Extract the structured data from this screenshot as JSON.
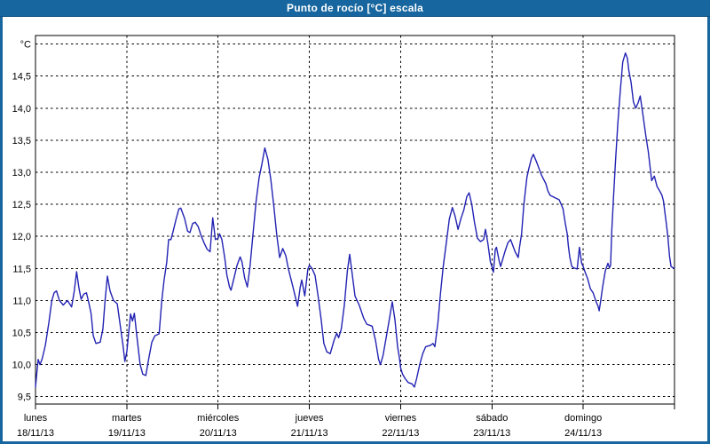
{
  "window": {
    "title": "Punto de rocío [°C] escala"
  },
  "colors": {
    "header_bg": "#17669f",
    "header_text": "#ffffff",
    "frame_border": "#17669f",
    "series_line": "#2222b3",
    "grid": "#000000",
    "plot_bg": "#ffffff"
  },
  "chart": {
    "y_axis": {
      "ticks": [
        {
          "label": "°C",
          "value": 15.0
        },
        {
          "label": "14,5",
          "value": 14.5
        },
        {
          "label": "14,0",
          "value": 14.0
        },
        {
          "label": "13,5",
          "value": 13.5
        },
        {
          "label": "13,0",
          "value": 13.0
        },
        {
          "label": "12,5",
          "value": 12.5
        },
        {
          "label": "12,0",
          "value": 12.0
        },
        {
          "label": "11,5",
          "value": 11.5
        },
        {
          "label": "11,0",
          "value": 11.0
        },
        {
          "label": "10,5",
          "value": 10.5
        },
        {
          "label": "10,0",
          "value": 10.0
        },
        {
          "label": "9,5",
          "value": 9.5
        }
      ]
    },
    "x_axis": {
      "days": [
        {
          "name": "lunes",
          "date": "18/11/13"
        },
        {
          "name": "martes",
          "date": "19/11/13"
        },
        {
          "name": "miércoles",
          "date": "20/11/13"
        },
        {
          "name": "jueves",
          "date": "21/11/13"
        },
        {
          "name": "viernes",
          "date": "22/11/13"
        },
        {
          "name": "sábado",
          "date": "23/11/13"
        },
        {
          "name": "domingo",
          "date": "24/11/13"
        }
      ]
    }
  },
  "chart_data": {
    "type": "line",
    "title": "Punto de rocío [°C] escala",
    "xlabel": "",
    "ylabel": "°C",
    "ylim": [
      9.5,
      15.0
    ],
    "y_tick_step": 0.5,
    "grid": "dashed",
    "legend": "none",
    "x_categories": [
      "lunes 18/11/13",
      "martes 19/11/13",
      "miércoles 20/11/13",
      "jueves 21/11/13",
      "viernes 22/11/13",
      "sábado 23/11/13",
      "domingo 24/11/13"
    ],
    "x_unit": "hours since lunes 18/11/13 00:00 (24 h per day, 7 days)",
    "series": [
      {
        "name": "Punto de rocío [°C]",
        "x_hours": [
          0,
          0.4,
          0.7,
          1.2,
          1.8,
          2.6,
          3.5,
          4.3,
          4.9,
          5.5,
          6.3,
          7.3,
          8.4,
          9.5,
          10.2,
          10.8,
          11.4,
          12,
          12.7,
          13.4,
          14,
          14.6,
          15.2,
          15.9,
          17,
          17.7,
          18.3,
          18.9,
          19.6,
          20.5,
          21.5,
          22.3,
          23,
          23.5,
          24,
          24.5,
          25,
          25.5,
          26,
          26.7,
          27.5,
          28.2,
          29,
          29.8,
          30.6,
          31.4,
          32.5,
          33.2,
          33.8,
          34.5,
          35,
          35.6,
          36.2,
          37,
          37.7,
          38.2,
          39.2,
          40,
          40.6,
          41.3,
          42,
          42.8,
          43.5,
          44.3,
          45.1,
          45.9,
          46.6,
          47.3,
          48,
          48.4,
          49,
          49.8,
          50.3,
          51,
          51.4,
          52.2,
          53,
          53.8,
          54.3,
          55,
          55.7,
          56.4,
          57.2,
          58,
          58.8,
          59.5,
          60.3,
          61.1,
          61.9,
          62.7,
          63.4,
          64.2,
          65,
          65.8,
          66.5,
          67.7,
          68.9,
          69.6,
          70,
          70.8,
          71.6,
          72,
          72.7,
          73.5,
          74.3,
          75.1,
          75.8,
          76.6,
          77.5,
          78.5,
          79.2,
          79.7,
          80.4,
          81.2,
          82,
          82.6,
          83.2,
          84,
          85.1,
          86.3,
          87.1,
          88.5,
          89.4,
          90.2,
          90.7,
          91.4,
          92.2,
          93,
          93.8,
          94.5,
          95.2,
          95.7,
          96,
          96.5,
          97.2,
          98,
          99,
          99.6,
          100.2,
          101,
          101.8,
          102.6,
          103.8,
          104.5,
          105,
          105.8,
          106.5,
          107.2,
          108,
          108.8,
          109.6,
          110.3,
          111.1,
          111.9,
          112.6,
          113.4,
          114,
          114.7,
          115.4,
          116.2,
          117,
          117.8,
          118.3,
          118.9,
          119.6,
          120,
          120.4,
          120.9,
          121.2,
          121.9,
          122.3,
          123.4,
          124.2,
          124.9,
          126.1,
          126.9,
          127.3,
          127.8,
          128.4,
          129.2,
          129.7,
          130.4,
          130.9,
          131.8,
          133,
          134.2,
          134.7,
          135.3,
          137.7,
          138.2,
          138.7,
          139.3,
          139.8,
          140.1,
          140.5,
          141,
          141.5,
          142.4,
          143,
          143.6,
          144,
          144.5,
          145.1,
          145.9,
          146.6,
          147.4,
          147.9,
          148.2,
          148.6,
          149.1,
          149.8,
          150.5,
          150.9,
          151.2,
          151.5,
          152,
          152.5,
          153.1,
          153.8,
          154.4,
          155.1,
          155.6,
          156,
          156.6,
          157.2,
          157.8,
          158.4,
          159,
          159.8,
          160.5,
          161.1,
          162,
          162.7,
          163.4,
          164.2,
          164.7,
          165.1,
          165.5,
          165.9,
          166.3,
          166.7,
          167.1,
          167.9
        ],
        "values": [
          9.65,
          9.9,
          10.08,
          10,
          10.1,
          10.3,
          10.65,
          11,
          11.12,
          11.15,
          11,
          10.93,
          11,
          10.9,
          11.15,
          11.45,
          11.2,
          11.02,
          11.1,
          11.12,
          10.97,
          10.8,
          10.45,
          10.33,
          10.35,
          10.55,
          11,
          11.38,
          11.15,
          11,
          10.95,
          10.6,
          10.3,
          10.05,
          10.2,
          10.5,
          10.79,
          10.68,
          10.8,
          10.42,
          10,
          9.85,
          9.83,
          10.1,
          10.35,
          10.45,
          10.48,
          11,
          11.32,
          11.6,
          11.95,
          11.95,
          12.08,
          12.28,
          12.43,
          12.44,
          12.28,
          12.08,
          12.06,
          12.2,
          12.22,
          12.15,
          12.02,
          11.9,
          11.8,
          11.76,
          12.29,
          11.95,
          11.97,
          12.04,
          11.95,
          11.65,
          11.4,
          11.21,
          11.16,
          11.35,
          11.55,
          11.68,
          11.6,
          11.35,
          11.21,
          11.53,
          12.04,
          12.55,
          12.92,
          13.12,
          13.38,
          13.2,
          12.87,
          12.45,
          12.04,
          11.67,
          11.81,
          11.7,
          11.49,
          11.21,
          10.91,
          11.21,
          11.32,
          11.07,
          11.49,
          11.55,
          11.5,
          11.39,
          11.07,
          10.7,
          10.33,
          10.2,
          10.17,
          10.38,
          10.49,
          10.42,
          10.56,
          10.93,
          11.46,
          11.72,
          11.44,
          11.07,
          10.93,
          10.72,
          10.63,
          10.6,
          10.38,
          10.08,
          10,
          10.15,
          10.42,
          10.7,
          10.98,
          10.7,
          10.28,
          10.1,
          9.95,
          9.85,
          9.78,
          9.72,
          9.7,
          9.65,
          9.78,
          10,
          10.17,
          10.28,
          10.3,
          10.33,
          10.28,
          10.65,
          11.12,
          11.53,
          11.9,
          12.27,
          12.45,
          12.32,
          12.11,
          12.29,
          12.41,
          12.62,
          12.68,
          12.5,
          12.22,
          11.97,
          11.92,
          11.95,
          12.11,
          11.9,
          11.6,
          11.53,
          11.44,
          11.8,
          11.83,
          11.62,
          11.53,
          11.76,
          11.9,
          11.95,
          11.76,
          11.67,
          11.85,
          12.04,
          12.5,
          12.92,
          13.06,
          13.22,
          13.28,
          13.15,
          12.96,
          12.82,
          12.71,
          12.64,
          12.57,
          12.5,
          12.43,
          12.2,
          12.04,
          11.85,
          11.67,
          11.53,
          11.51,
          11.49,
          11.83,
          11.58,
          11.53,
          11.44,
          11.35,
          11.18,
          11.12,
          10.98,
          10.91,
          10.84,
          11,
          11.21,
          11.46,
          11.58,
          11.51,
          11.55,
          12.08,
          12.64,
          13.19,
          13.75,
          14.3,
          14.72,
          14.86,
          14.78,
          14.58,
          14.4,
          14.1,
          14,
          14.08,
          14.19,
          13.85,
          13.55,
          13.33,
          12.87,
          12.94,
          12.78,
          12.7,
          12.64,
          12.55,
          12.36,
          12.18,
          11.97,
          11.69,
          11.53,
          11.5
        ]
      }
    ]
  }
}
